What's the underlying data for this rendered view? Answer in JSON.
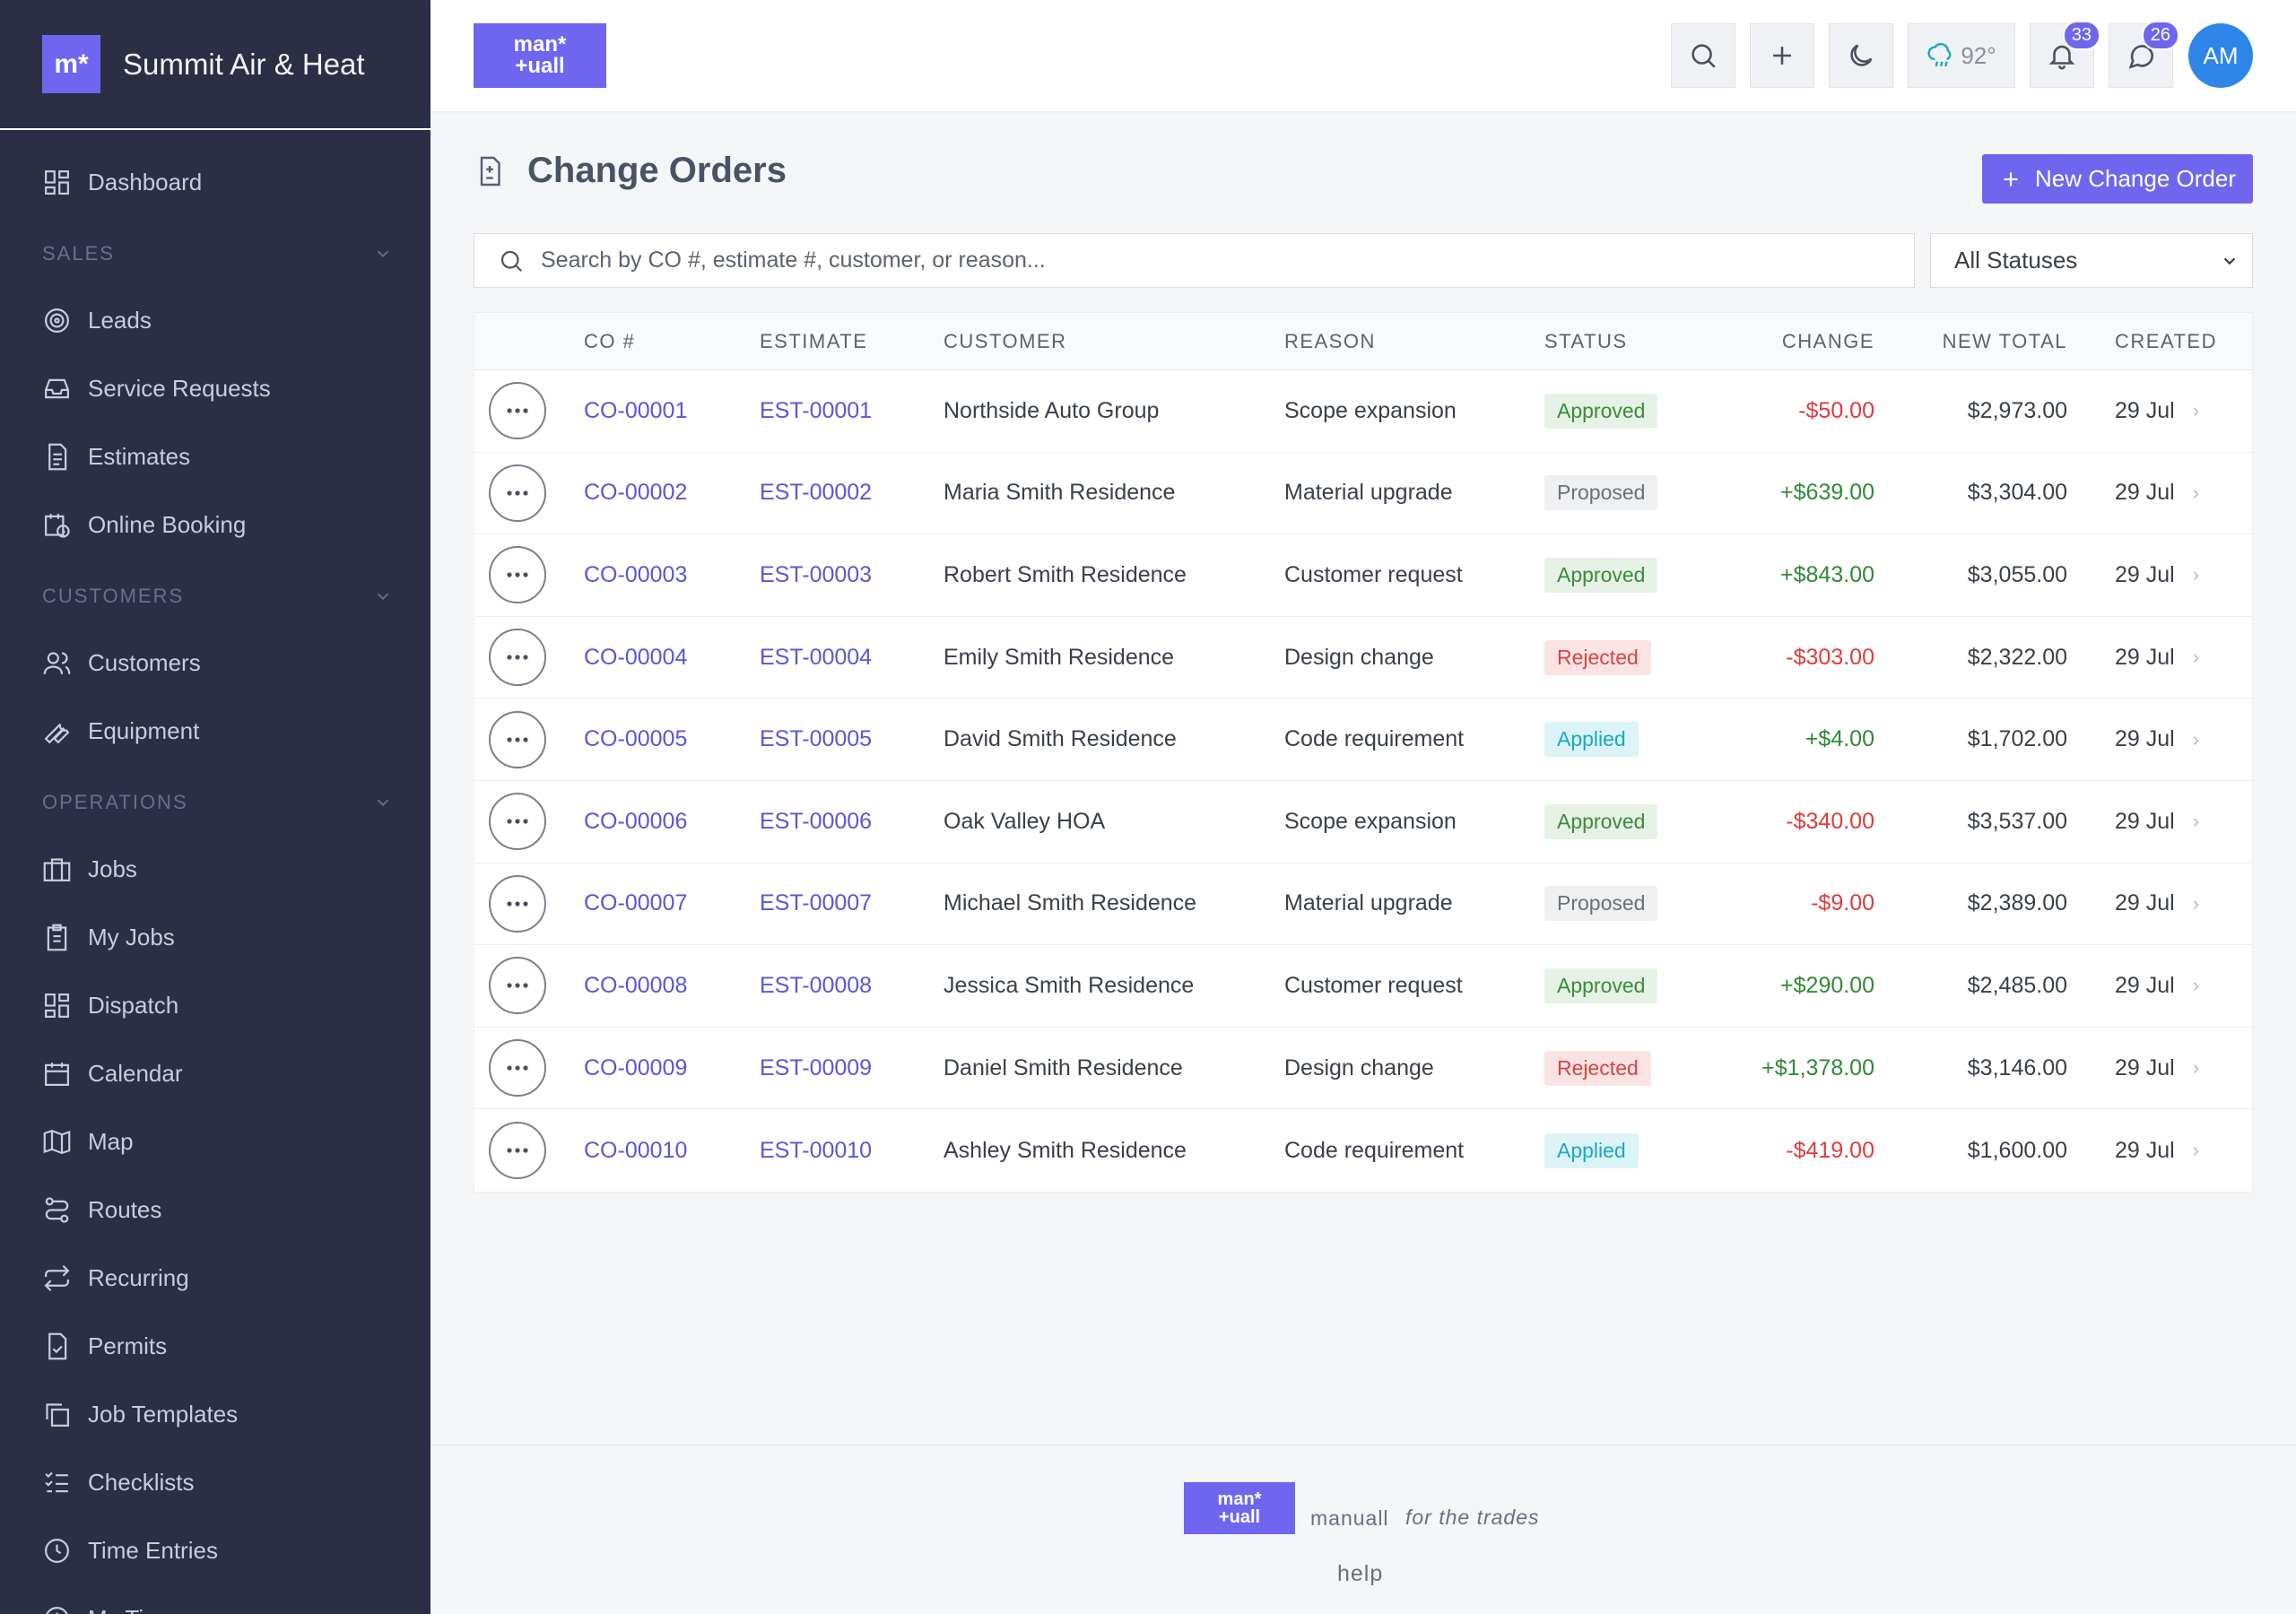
{
  "brand": {
    "logo_text": "m*",
    "name": "Summit Air & Heat"
  },
  "sidebar": {
    "items": {
      "dashboard": "Dashboard",
      "sales_section": "SALES",
      "leads": "Leads",
      "service_requests": "Service Requests",
      "estimates": "Estimates",
      "online_booking": "Online Booking",
      "customers_section": "CUSTOMERS",
      "customers": "Customers",
      "equipment": "Equipment",
      "operations_section": "OPERATIONS",
      "jobs": "Jobs",
      "my_jobs": "My Jobs",
      "dispatch": "Dispatch",
      "calendar": "Calendar",
      "map": "Map",
      "routes": "Routes",
      "recurring": "Recurring",
      "permits": "Permits",
      "job_templates": "Job Templates",
      "checklists": "Checklists",
      "time_entries": "Time Entries",
      "my_time": "My Time"
    }
  },
  "topbar": {
    "logo_line1": "man*",
    "logo_line2": "+uall",
    "weather": "92°",
    "notifications_count": "33",
    "messages_count": "26",
    "avatar_initials": "AM"
  },
  "page": {
    "title": "Change Orders",
    "new_button": "New Change Order",
    "search_placeholder": "Search by CO #, estimate #, customer, or reason...",
    "status_filter": "All Statuses"
  },
  "table": {
    "headers": {
      "co": "CO #",
      "estimate": "ESTIMATE",
      "customer": "CUSTOMER",
      "reason": "REASON",
      "status": "STATUS",
      "change": "CHANGE",
      "new_total": "NEW TOTAL",
      "created": "CREATED"
    },
    "rows": [
      {
        "co": "CO-00001",
        "estimate": "EST-00001",
        "customer": "Northside Auto Group",
        "reason": "Scope expansion",
        "status": "Approved",
        "change": "-$50.00",
        "new_total": "$2,973.00",
        "created": "29 Jul"
      },
      {
        "co": "CO-00002",
        "estimate": "EST-00002",
        "customer": "Maria Smith Residence",
        "reason": "Material upgrade",
        "status": "Proposed",
        "change": "+$639.00",
        "new_total": "$3,304.00",
        "created": "29 Jul"
      },
      {
        "co": "CO-00003",
        "estimate": "EST-00003",
        "customer": "Robert Smith Residence",
        "reason": "Customer request",
        "status": "Approved",
        "change": "+$843.00",
        "new_total": "$3,055.00",
        "created": "29 Jul"
      },
      {
        "co": "CO-00004",
        "estimate": "EST-00004",
        "customer": "Emily Smith Residence",
        "reason": "Design change",
        "status": "Rejected",
        "change": "-$303.00",
        "new_total": "$2,322.00",
        "created": "29 Jul"
      },
      {
        "co": "CO-00005",
        "estimate": "EST-00005",
        "customer": "David Smith Residence",
        "reason": "Code requirement",
        "status": "Applied",
        "change": "+$4.00",
        "new_total": "$1,702.00",
        "created": "29 Jul"
      },
      {
        "co": "CO-00006",
        "estimate": "EST-00006",
        "customer": "Oak Valley HOA",
        "reason": "Scope expansion",
        "status": "Approved",
        "change": "-$340.00",
        "new_total": "$3,537.00",
        "created": "29 Jul"
      },
      {
        "co": "CO-00007",
        "estimate": "EST-00007",
        "customer": "Michael Smith Residence",
        "reason": "Material upgrade",
        "status": "Proposed",
        "change": "-$9.00",
        "new_total": "$2,389.00",
        "created": "29 Jul"
      },
      {
        "co": "CO-00008",
        "estimate": "EST-00008",
        "customer": "Jessica Smith Residence",
        "reason": "Customer request",
        "status": "Approved",
        "change": "+$290.00",
        "new_total": "$2,485.00",
        "created": "29 Jul"
      },
      {
        "co": "CO-00009",
        "estimate": "EST-00009",
        "customer": "Daniel Smith Residence",
        "reason": "Design change",
        "status": "Rejected",
        "change": "+$1,378.00",
        "new_total": "$3,146.00",
        "created": "29 Jul"
      },
      {
        "co": "CO-00010",
        "estimate": "EST-00010",
        "customer": "Ashley Smith Residence",
        "reason": "Code requirement",
        "status": "Applied",
        "change": "-$419.00",
        "new_total": "$1,600.00",
        "created": "29 Jul"
      }
    ]
  },
  "footer": {
    "logo_line1": "man*",
    "logo_line2": "+uall",
    "name": "manuall",
    "tagline": "for the trades",
    "help": "help"
  },
  "colors": {
    "accent": "#6f66f0",
    "sidebar_bg": "#2b2e45",
    "avatar": "#2f86e9",
    "negative": "#e03b3b",
    "positive": "#2f8a36"
  }
}
